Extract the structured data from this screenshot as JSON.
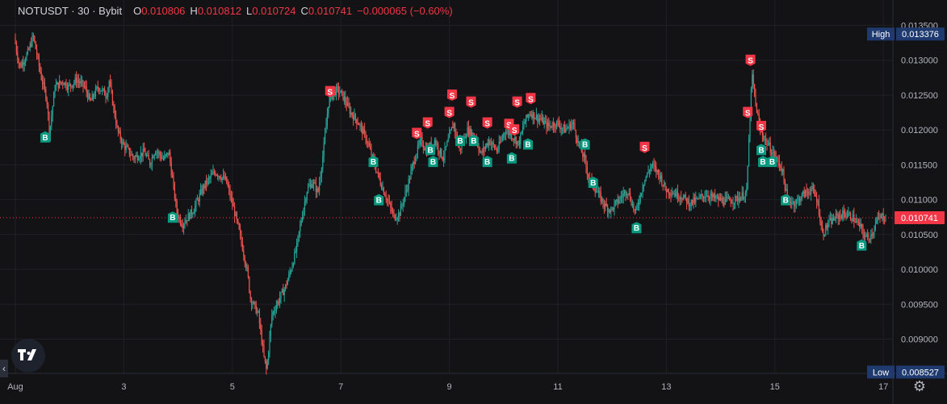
{
  "header": {
    "title": "NOTUSDT · 30 · Bybit",
    "open_label": "O",
    "open": "0.010806",
    "high_label": "H",
    "high": "0.010812",
    "low_label": "L",
    "low": "0.010724",
    "close_label": "C",
    "close": "0.010741",
    "change": "−0.000065 (−0.60%)"
  },
  "colors": {
    "up": "#26a69a",
    "down": "#ef5350",
    "buy": "#089981",
    "sell": "#f23645",
    "grid": "#1f2127",
    "text": "#b2b5be",
    "tag_blue": "#1e3a6e"
  },
  "icons": {
    "logo": "tradingview-logo-icon",
    "settings": "gear-icon",
    "scroll": "chevron-left-icon"
  },
  "chart_data": {
    "type": "candlestick",
    "symbol": "NOTUSDT",
    "interval": "30",
    "exchange": "Bybit",
    "y_ticks": [
      "0.013500",
      "0.013000",
      "0.012500",
      "0.012000",
      "0.011500",
      "0.011000",
      "0.010500",
      "0.010000",
      "0.009500",
      "0.009000"
    ],
    "y_range": [
      0.00845,
      0.0137
    ],
    "x_ticks": [
      "Aug",
      "3",
      "5",
      "7",
      "9",
      "11",
      "13",
      "15",
      "17"
    ],
    "x_tick_days": [
      1.0,
      3.0,
      5.0,
      7.0,
      9.0,
      11.0,
      13.0,
      15.0,
      17.0
    ],
    "x_range_days": [
      1.0,
      17.0
    ],
    "high_tag": {
      "label": "High",
      "value": "0.013376"
    },
    "low_tag": {
      "label": "Low",
      "value": "0.008527"
    },
    "last_price": "0.010741",
    "price_path": [
      [
        1.0,
        0.01333
      ],
      [
        1.1,
        0.0129
      ],
      [
        1.25,
        0.0131
      ],
      [
        1.35,
        0.01335
      ],
      [
        1.5,
        0.01275
      ],
      [
        1.6,
        0.01245
      ],
      [
        1.65,
        0.01195
      ],
      [
        1.75,
        0.01262
      ],
      [
        1.9,
        0.0127
      ],
      [
        2.0,
        0.01262
      ],
      [
        2.15,
        0.01272
      ],
      [
        2.3,
        0.01262
      ],
      [
        2.4,
        0.0124
      ],
      [
        2.55,
        0.01262
      ],
      [
        2.7,
        0.0125
      ],
      [
        2.75,
        0.0127
      ],
      [
        2.9,
        0.012
      ],
      [
        3.0,
        0.0118
      ],
      [
        3.2,
        0.0116
      ],
      [
        3.4,
        0.01168
      ],
      [
        3.5,
        0.01152
      ],
      [
        3.6,
        0.01172
      ],
      [
        3.75,
        0.01158
      ],
      [
        3.85,
        0.01168
      ],
      [
        3.95,
        0.0111
      ],
      [
        4.0,
        0.0108
      ],
      [
        4.1,
        0.01065
      ],
      [
        4.3,
        0.01085
      ],
      [
        4.5,
        0.0112
      ],
      [
        4.7,
        0.0114
      ],
      [
        4.9,
        0.01128
      ],
      [
        5.0,
        0.011
      ],
      [
        5.1,
        0.0107
      ],
      [
        5.2,
        0.01035
      ],
      [
        5.3,
        0.00995
      ],
      [
        5.35,
        0.0096
      ],
      [
        5.5,
        0.00935
      ],
      [
        5.6,
        0.00875
      ],
      [
        5.65,
        0.00855
      ],
      [
        5.75,
        0.00935
      ],
      [
        5.9,
        0.0096
      ],
      [
        6.0,
        0.00975
      ],
      [
        6.1,
        0.01
      ],
      [
        6.2,
        0.0103
      ],
      [
        6.3,
        0.01075
      ],
      [
        6.4,
        0.01115
      ],
      [
        6.5,
        0.01125
      ],
      [
        6.6,
        0.0111
      ],
      [
        6.7,
        0.0117
      ],
      [
        6.8,
        0.01245
      ],
      [
        6.95,
        0.01258
      ],
      [
        7.05,
        0.0125
      ],
      [
        7.2,
        0.01225
      ],
      [
        7.35,
        0.0121
      ],
      [
        7.5,
        0.01185
      ],
      [
        7.6,
        0.0116
      ],
      [
        7.75,
        0.01125
      ],
      [
        7.9,
        0.01095
      ],
      [
        8.0,
        0.01075
      ],
      [
        8.1,
        0.0108
      ],
      [
        8.25,
        0.0112
      ],
      [
        8.4,
        0.01165
      ],
      [
        8.5,
        0.01185
      ],
      [
        8.6,
        0.0117
      ],
      [
        8.75,
        0.01185
      ],
      [
        8.9,
        0.0116
      ],
      [
        9.0,
        0.01185
      ],
      [
        9.1,
        0.0121
      ],
      [
        9.2,
        0.0117
      ],
      [
        9.35,
        0.012
      ],
      [
        9.5,
        0.0119
      ],
      [
        9.6,
        0.01165
      ],
      [
        9.75,
        0.01185
      ],
      [
        9.9,
        0.0117
      ],
      [
        10.05,
        0.012
      ],
      [
        10.2,
        0.0119
      ],
      [
        10.3,
        0.0118
      ],
      [
        10.4,
        0.0121
      ],
      [
        10.5,
        0.01225
      ],
      [
        10.6,
        0.0122
      ],
      [
        10.7,
        0.01215
      ],
      [
        10.85,
        0.01205
      ],
      [
        11.0,
        0.0121
      ],
      [
        11.15,
        0.012
      ],
      [
        11.3,
        0.0121
      ],
      [
        11.4,
        0.0118
      ],
      [
        11.5,
        0.0116
      ],
      [
        11.6,
        0.0113
      ],
      [
        11.75,
        0.0111
      ],
      [
        11.9,
        0.0109
      ],
      [
        12.0,
        0.01085
      ],
      [
        12.15,
        0.011
      ],
      [
        12.3,
        0.01115
      ],
      [
        12.45,
        0.0108
      ],
      [
        12.6,
        0.01125
      ],
      [
        12.75,
        0.0115
      ],
      [
        12.9,
        0.01135
      ],
      [
        13.0,
        0.01115
      ],
      [
        13.15,
        0.0111
      ],
      [
        13.3,
        0.01105
      ],
      [
        13.45,
        0.01095
      ],
      [
        13.6,
        0.011
      ],
      [
        13.75,
        0.01108
      ],
      [
        13.9,
        0.01102
      ],
      [
        14.1,
        0.01098
      ],
      [
        14.3,
        0.011
      ],
      [
        14.5,
        0.0111
      ],
      [
        14.55,
        0.012
      ],
      [
        14.6,
        0.0128
      ],
      [
        14.65,
        0.01245
      ],
      [
        14.75,
        0.012
      ],
      [
        14.85,
        0.01185
      ],
      [
        15.0,
        0.01165
      ],
      [
        15.15,
        0.01145
      ],
      [
        15.25,
        0.011
      ],
      [
        15.4,
        0.01095
      ],
      [
        15.55,
        0.01108
      ],
      [
        15.7,
        0.01115
      ],
      [
        15.8,
        0.011
      ],
      [
        15.9,
        0.0105
      ],
      [
        16.0,
        0.01065
      ],
      [
        16.15,
        0.01075
      ],
      [
        16.3,
        0.0108
      ],
      [
        16.45,
        0.01075
      ],
      [
        16.6,
        0.0106
      ],
      [
        16.7,
        0.01045
      ],
      [
        16.8,
        0.0105
      ],
      [
        16.9,
        0.0107
      ],
      [
        17.0,
        0.01076
      ],
      [
        17.05,
        0.01074
      ]
    ],
    "signals": [
      {
        "type": "B",
        "day": 1.55,
        "price": 0.0119
      },
      {
        "type": "B",
        "day": 3.9,
        "price": 0.01075
      },
      {
        "type": "S",
        "day": 6.8,
        "price": 0.01255
      },
      {
        "type": "B",
        "day": 7.6,
        "price": 0.01155
      },
      {
        "type": "B",
        "day": 7.7,
        "price": 0.011
      },
      {
        "type": "S",
        "day": 8.4,
        "price": 0.01195
      },
      {
        "type": "S",
        "day": 8.6,
        "price": 0.0121
      },
      {
        "type": "B",
        "day": 8.65,
        "price": 0.01172
      },
      {
        "type": "B",
        "day": 8.7,
        "price": 0.01155
      },
      {
        "type": "S",
        "day": 9.0,
        "price": 0.01225
      },
      {
        "type": "S",
        "day": 9.05,
        "price": 0.0125
      },
      {
        "type": "B",
        "day": 9.2,
        "price": 0.01185
      },
      {
        "type": "B",
        "day": 9.45,
        "price": 0.01185
      },
      {
        "type": "S",
        "day": 9.4,
        "price": 0.0124
      },
      {
        "type": "B",
        "day": 9.7,
        "price": 0.01155
      },
      {
        "type": "S",
        "day": 9.7,
        "price": 0.0121
      },
      {
        "type": "S",
        "day": 10.1,
        "price": 0.01208
      },
      {
        "type": "S",
        "day": 10.2,
        "price": 0.012
      },
      {
        "type": "B",
        "day": 10.15,
        "price": 0.0116
      },
      {
        "type": "S",
        "day": 10.25,
        "price": 0.0124
      },
      {
        "type": "S",
        "day": 10.5,
        "price": 0.01245
      },
      {
        "type": "B",
        "day": 10.45,
        "price": 0.0118
      },
      {
        "type": "B",
        "day": 11.5,
        "price": 0.0118
      },
      {
        "type": "B",
        "day": 11.65,
        "price": 0.01125
      },
      {
        "type": "B",
        "day": 12.45,
        "price": 0.0106
      },
      {
        "type": "S",
        "day": 12.6,
        "price": 0.01175
      },
      {
        "type": "S",
        "day": 14.55,
        "price": 0.013
      },
      {
        "type": "S",
        "day": 14.5,
        "price": 0.01225
      },
      {
        "type": "S",
        "day": 14.75,
        "price": 0.01205
      },
      {
        "type": "B",
        "day": 14.75,
        "price": 0.01172
      },
      {
        "type": "B",
        "day": 14.78,
        "price": 0.01155
      },
      {
        "type": "B",
        "day": 14.95,
        "price": 0.01155
      },
      {
        "type": "B",
        "day": 15.2,
        "price": 0.011
      },
      {
        "type": "B",
        "day": 16.6,
        "price": 0.01035
      }
    ]
  }
}
